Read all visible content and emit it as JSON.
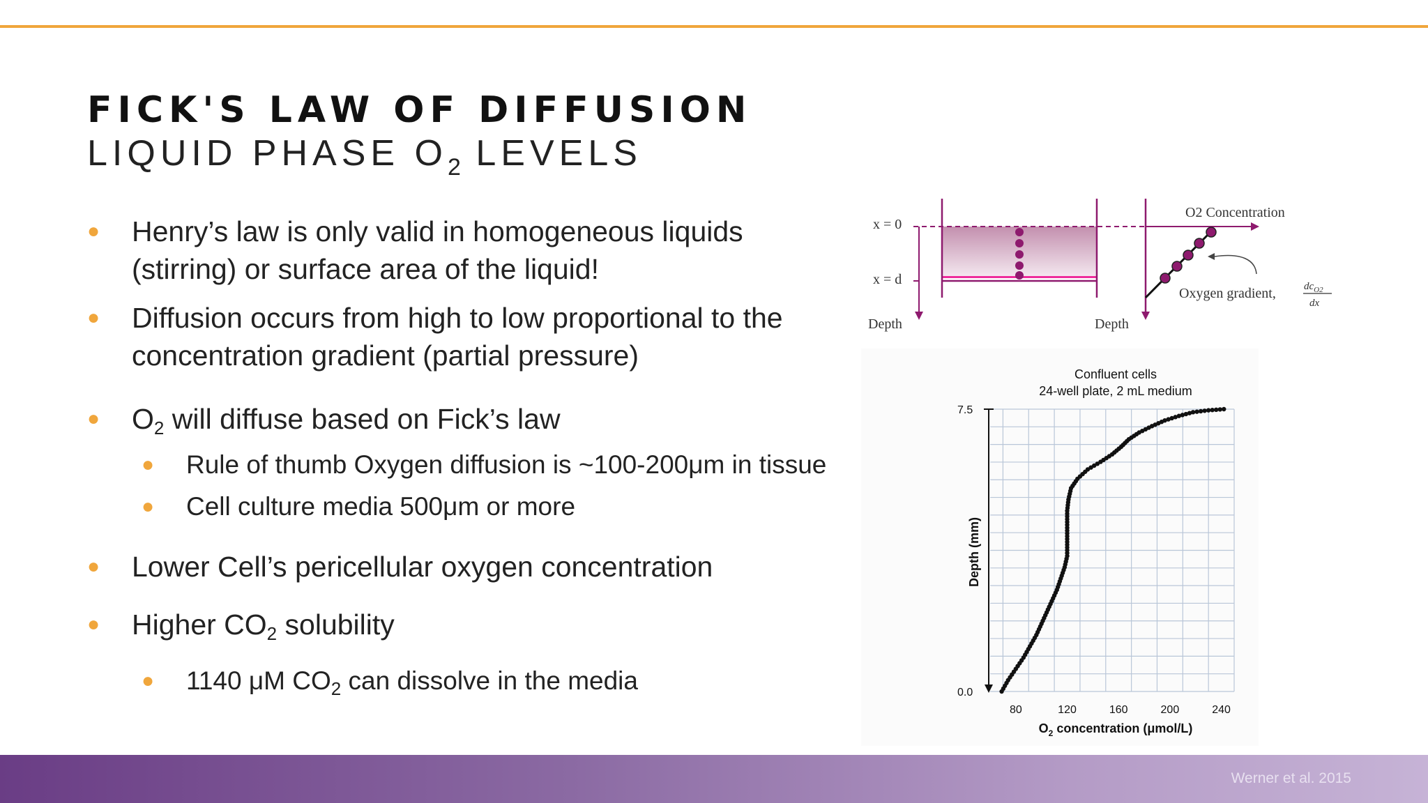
{
  "slide": {
    "title": "FICK'S LAW OF DIFFUSION",
    "subtitle_pre": "LIQUID PHASE O",
    "subtitle_sub": "2",
    "subtitle_post": " LEVELS",
    "citation": "Werner et al. 2015"
  },
  "colors": {
    "accent": "#f0a63c",
    "diagram": "#8e1a6e",
    "liquid_base": "#ee2d9c",
    "footer_start": "#6a3d85",
    "footer_end": "#c6b3d6"
  },
  "bullets": [
    {
      "parts": [
        "Henry’s law is only valid in homogeneous liquids",
        "(stirring) or surface area of the liquid!"
      ]
    },
    {
      "parts": [
        "Diffusion occurs from high to low proportional to the",
        "concentration gradient (partial pressure)"
      ]
    },
    {
      "pre": "O",
      "sub": "2",
      "post": " will diffuse based on Fick’s law"
    },
    {
      "text": "Rule of thumb Oxygen diffusion is ~100-200μm in tissue"
    },
    {
      "text": "Cell culture media 500μm or more"
    },
    {
      "text": "Lower Cell’s pericellular oxygen concentration"
    },
    {
      "pre": "Higher CO",
      "sub": "2",
      "post": " solubility"
    },
    {
      "pre": "1140 μM CO",
      "sub": "2",
      "post": " can dissolve in the media"
    }
  ],
  "diagram": {
    "x0": "x = 0",
    "xd": "x = d",
    "depth_left": "Depth",
    "depth_right": "Depth",
    "o2_label": "O2 Concentration",
    "gradient_label": "Oxygen gradient,",
    "frac_num": "dc",
    "frac_num_sub": "O2",
    "frac_den": "dx",
    "icons": [
      "curved-arrow-icon",
      "down-arrow-icon",
      "right-arrow-icon"
    ]
  },
  "chart_data": {
    "type": "scatter",
    "title": "Confluent cells",
    "subtitle": "24-well plate, 2 mL medium",
    "xlabel_pre": "O",
    "xlabel_sub": "2",
    "xlabel_post": " concentration (μmol/L)",
    "ylabel": "Depth (mm)",
    "xlim": [
      60,
      250
    ],
    "ylim": [
      0,
      7.5
    ],
    "xticks": [
      80,
      120,
      160,
      200,
      240
    ],
    "yticks": [
      0.0,
      7.5
    ],
    "ytick_labels": [
      "0.0",
      "7.5"
    ],
    "grid": true,
    "points": [
      [
        69,
        0.0
      ],
      [
        74,
        0.3
      ],
      [
        80,
        0.6
      ],
      [
        86,
        0.9
      ],
      [
        91,
        1.2
      ],
      [
        96,
        1.5
      ],
      [
        100,
        1.8
      ],
      [
        104,
        2.1
      ],
      [
        108,
        2.4
      ],
      [
        112,
        2.7
      ],
      [
        115,
        3.0
      ],
      [
        118,
        3.3
      ],
      [
        120,
        3.6
      ],
      [
        120,
        3.9
      ],
      [
        120,
        4.2
      ],
      [
        120,
        4.5
      ],
      [
        120,
        4.8
      ],
      [
        121,
        5.1
      ],
      [
        123,
        5.4
      ],
      [
        128,
        5.65
      ],
      [
        136,
        5.9
      ],
      [
        146,
        6.1
      ],
      [
        155,
        6.3
      ],
      [
        162,
        6.5
      ],
      [
        168,
        6.7
      ],
      [
        176,
        6.88
      ],
      [
        186,
        7.05
      ],
      [
        196,
        7.2
      ],
      [
        207,
        7.32
      ],
      [
        218,
        7.42
      ],
      [
        230,
        7.47
      ],
      [
        242,
        7.5
      ]
    ]
  }
}
